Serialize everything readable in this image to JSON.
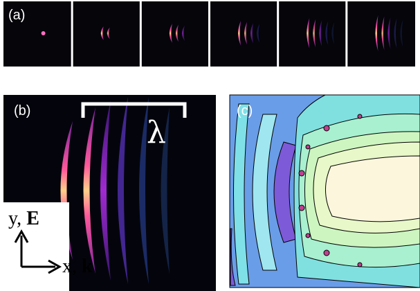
{
  "panels": [
    {
      "label": "(a)"
    },
    {
      "label": "(b)",
      "wavelength": "λ",
      "y_axis": {
        "name": "y, ",
        "vector": "E"
      },
      "x_axis": {
        "name": "x, ",
        "vector": "k"
      }
    },
    {
      "label": "(c)"
    }
  ]
}
